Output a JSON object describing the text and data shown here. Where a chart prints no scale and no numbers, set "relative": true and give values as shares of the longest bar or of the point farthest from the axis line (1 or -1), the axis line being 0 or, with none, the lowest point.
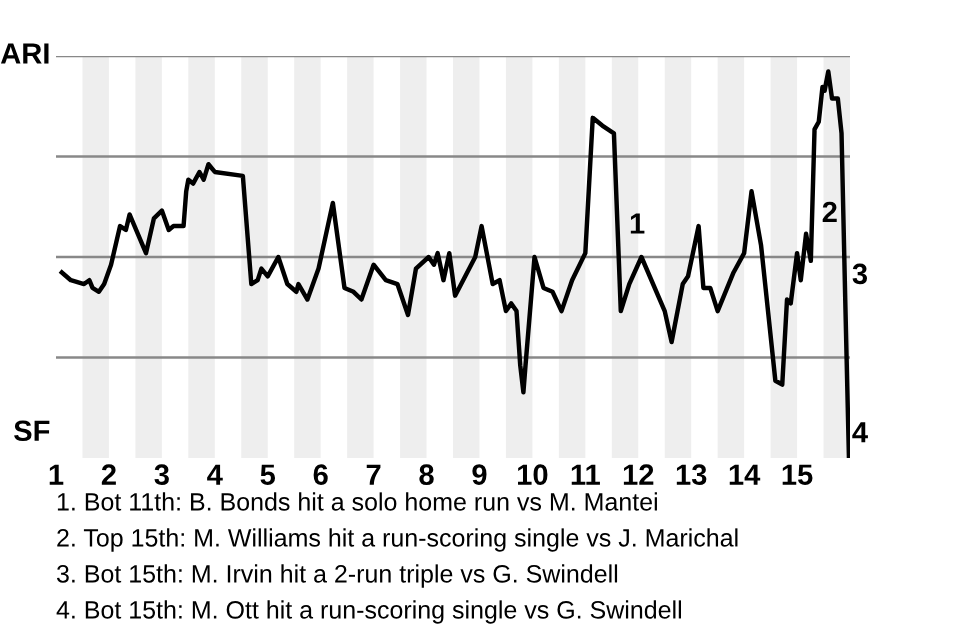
{
  "chart_data": {
    "type": "line",
    "color": "#000000",
    "relative": true,
    "marker": "none",
    "line_style": "solid",
    "x": [
      1.11,
      1.28,
      1.53,
      1.63,
      1.69,
      1.81,
      1.91,
      2.04,
      2.21,
      2.32,
      2.39,
      2.7,
      2.85,
      3.0,
      3.13,
      3.22,
      3.33,
      3.41,
      3.46,
      3.5,
      3.59,
      3.71,
      3.79,
      3.88,
      4.0,
      4.53,
      4.69,
      4.81,
      4.88,
      5.0,
      5.2,
      5.37,
      5.54,
      5.58,
      5.75,
      5.96,
      6.23,
      6.45,
      6.62,
      6.77,
      7.0,
      7.23,
      7.45,
      7.65,
      7.8,
      8.04,
      8.14,
      8.21,
      8.32,
      8.43,
      8.54,
      8.92,
      9.04,
      9.25,
      9.38,
      9.5,
      9.6,
      9.7,
      9.77,
      9.83,
      9.87,
      10.04,
      10.21,
      10.38,
      10.55,
      10.75,
      11.0,
      11.14,
      11.32,
      11.54,
      11.67,
      11.83,
      12.06,
      12.5,
      12.63,
      12.84,
      12.94,
      13.14,
      13.23,
      13.36,
      13.5,
      13.8,
      14.0,
      14.14,
      14.32,
      14.59,
      14.72,
      14.81,
      14.88,
      15.0,
      15.07,
      15.17,
      15.26,
      15.33,
      15.41,
      15.48,
      15.52,
      15.59,
      15.66,
      15.77,
      15.84,
      15.91,
      15.98
    ],
    "values": [
      0.48,
      0.46,
      0.45,
      0.46,
      0.44,
      0.43,
      0.45,
      0.5,
      0.6,
      0.59,
      0.63,
      0.53,
      0.62,
      0.64,
      0.59,
      0.6,
      0.6,
      0.6,
      0.69,
      0.72,
      0.71,
      0.74,
      0.72,
      0.76,
      0.74,
      0.73,
      0.45,
      0.46,
      0.49,
      0.47,
      0.52,
      0.45,
      0.43,
      0.45,
      0.41,
      0.49,
      0.66,
      0.44,
      0.43,
      0.41,
      0.5,
      0.46,
      0.45,
      0.37,
      0.49,
      0.52,
      0.5,
      0.53,
      0.46,
      0.53,
      0.42,
      0.52,
      0.6,
      0.45,
      0.46,
      0.38,
      0.4,
      0.38,
      0.24,
      0.17,
      0.24,
      0.52,
      0.44,
      0.43,
      0.38,
      0.46,
      0.53,
      0.88,
      0.86,
      0.84,
      0.38,
      0.45,
      0.52,
      0.38,
      0.3,
      0.45,
      0.47,
      0.6,
      0.44,
      0.44,
      0.38,
      0.48,
      0.53,
      0.69,
      0.55,
      0.2,
      0.19,
      0.41,
      0.4,
      0.53,
      0.46,
      0.58,
      0.51,
      0.85,
      0.87,
      0.96,
      0.95,
      1.0,
      0.93,
      0.93,
      0.84,
      0.41,
      0.0
    ],
    "xlim": [
      1,
      16
    ],
    "xticks": [
      1,
      2,
      3,
      4,
      5,
      6,
      7,
      8,
      9,
      10,
      11,
      12,
      13,
      14,
      15
    ],
    "ref_lines": [
      {
        "axis": "y",
        "value": 0.26,
        "color": "#888888"
      },
      {
        "axis": "y",
        "value": 0.52,
        "color": "#888888"
      },
      {
        "axis": "y",
        "value": 0.78,
        "color": "#888888"
      },
      {
        "axis": "y",
        "value": 1.04,
        "color": "#888888"
      }
    ],
    "bands": [
      {
        "axis": "x",
        "from": 1.5,
        "to": 2,
        "color": "#eeeeee"
      },
      {
        "axis": "x",
        "from": 2.5,
        "to": 3,
        "color": "#eeeeee"
      },
      {
        "axis": "x",
        "from": 3.5,
        "to": 4,
        "color": "#eeeeee"
      },
      {
        "axis": "x",
        "from": 4.5,
        "to": 5,
        "color": "#eeeeee"
      },
      {
        "axis": "x",
        "from": 5.5,
        "to": 6,
        "color": "#eeeeee"
      },
      {
        "axis": "x",
        "from": 6.5,
        "to": 7,
        "color": "#eeeeee"
      },
      {
        "axis": "x",
        "from": 7.5,
        "to": 8,
        "color": "#eeeeee"
      },
      {
        "axis": "x",
        "from": 8.5,
        "to": 9,
        "color": "#eeeeee"
      },
      {
        "axis": "x",
        "from": 9.5,
        "to": 10,
        "color": "#eeeeee"
      },
      {
        "axis": "x",
        "from": 10.5,
        "to": 11,
        "color": "#eeeeee"
      },
      {
        "axis": "x",
        "from": 11.5,
        "to": 12,
        "color": "#eeeeee"
      },
      {
        "axis": "x",
        "from": 12.5,
        "to": 13,
        "color": "#eeeeee"
      },
      {
        "axis": "x",
        "from": 13.5,
        "to": 14,
        "color": "#eeeeee"
      },
      {
        "axis": "x",
        "from": 14.5,
        "to": 15,
        "color": "#eeeeee"
      },
      {
        "axis": "x",
        "from": 15.5,
        "to": 16,
        "color": "#eeeeee"
      }
    ],
    "annotations": [
      {
        "text": "ARI",
        "x": 1,
        "y": 1.04
      },
      "SF",
      {
        "text": "1",
        "x": 11.72,
        "y": 0.6
      },
      {
        "text": "2",
        "x": 15.36,
        "y": 0.63
      },
      {
        "text": "3",
        "x": 15.93,
        "y": 0.47
      },
      {
        "text": "4",
        "x": 15.93,
        "y": 0.06
      },
      "1. Bot 11th: B. Bonds hit a solo home run vs M. Mantei",
      "2. Top 15th: M. Williams hit a run-scoring single vs J. Marichal",
      "3. Bot 15th: M. Irvin hit a 2-run triple vs G. Swindell",
      "4. Bot 15th: M. Ott hit a run-scoring single vs G. Swindell"
    ]
  }
}
